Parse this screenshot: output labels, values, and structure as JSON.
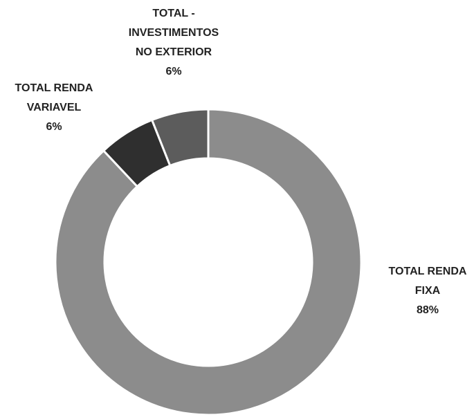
{
  "chart_data": {
    "type": "donut",
    "categories": [
      "TOTAL RENDA FIXA",
      "TOTAL RENDA VARIAVEL",
      "TOTAL - INVESTIMENTOS NO EXTERIOR"
    ],
    "values": [
      88,
      6,
      6
    ],
    "value_labels": [
      "88%",
      "6%",
      "6%"
    ],
    "colors": [
      "#8c8c8c",
      "#2f2f2f",
      "#5c5c5c"
    ]
  }
}
